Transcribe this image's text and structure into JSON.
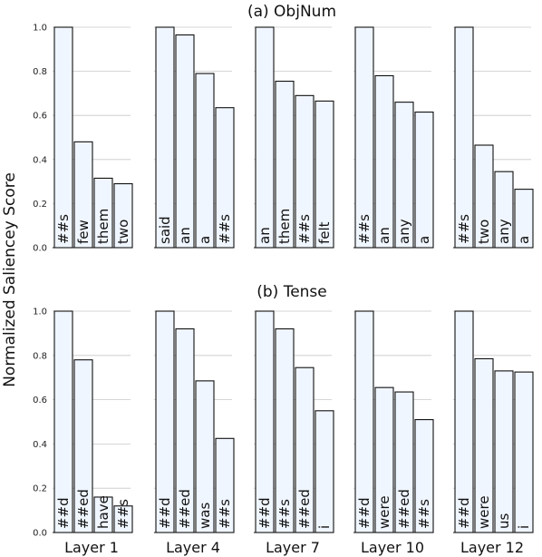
{
  "chart_data": {
    "type": "bar",
    "ylabel": "Normalized Saliencey Score",
    "ylim": [
      0,
      1.0
    ],
    "yticks": [
      "0.0",
      "0.2",
      "0.4",
      "0.6",
      "0.8",
      "1.0"
    ],
    "grid": true,
    "colors": {
      "bar_fill": "#f0f6ff",
      "bar_edge": "#111111",
      "grid": "#c8c8c8"
    },
    "layers": [
      "Layer 1",
      "Layer 4",
      "Layer 7",
      "Layer 10",
      "Layer 12"
    ],
    "panels": [
      {
        "title": "(a) ObjNum",
        "groups": [
          {
            "layer": "Layer 1",
            "tokens": [
              "##s",
              "few",
              "them",
              "two"
            ],
            "values": [
              1.0,
              0.48,
              0.315,
              0.29
            ]
          },
          {
            "layer": "Layer 4",
            "tokens": [
              "said",
              "an",
              "a",
              "##s"
            ],
            "values": [
              1.0,
              0.965,
              0.79,
              0.635
            ]
          },
          {
            "layer": "Layer 7",
            "tokens": [
              "an",
              "them",
              "##s",
              "felt"
            ],
            "values": [
              1.0,
              0.755,
              0.69,
              0.665
            ]
          },
          {
            "layer": "Layer 10",
            "tokens": [
              "##s",
              "an",
              "any",
              "a"
            ],
            "values": [
              1.0,
              0.78,
              0.66,
              0.615
            ]
          },
          {
            "layer": "Layer 12",
            "tokens": [
              "##s",
              "two",
              "any",
              "a"
            ],
            "values": [
              1.0,
              0.465,
              0.345,
              0.265
            ]
          }
        ]
      },
      {
        "title": "(b) Tense",
        "groups": [
          {
            "layer": "Layer 1",
            "tokens": [
              "##d",
              "##ed",
              "have",
              "##s"
            ],
            "values": [
              1.0,
              0.78,
              0.16,
              0.12
            ]
          },
          {
            "layer": "Layer 4",
            "tokens": [
              "##d",
              "##ed",
              "was",
              "##s"
            ],
            "values": [
              1.0,
              0.92,
              0.685,
              0.425
            ]
          },
          {
            "layer": "Layer 7",
            "tokens": [
              "##d",
              "##s",
              "##ed",
              "i"
            ],
            "values": [
              1.0,
              0.92,
              0.745,
              0.55
            ]
          },
          {
            "layer": "Layer 10",
            "tokens": [
              "##d",
              "were",
              "##ed",
              "##s"
            ],
            "values": [
              1.0,
              0.655,
              0.635,
              0.51
            ]
          },
          {
            "layer": "Layer 12",
            "tokens": [
              "##d",
              "were",
              "us",
              "i"
            ],
            "values": [
              1.0,
              0.785,
              0.73,
              0.725
            ]
          }
        ]
      }
    ]
  }
}
